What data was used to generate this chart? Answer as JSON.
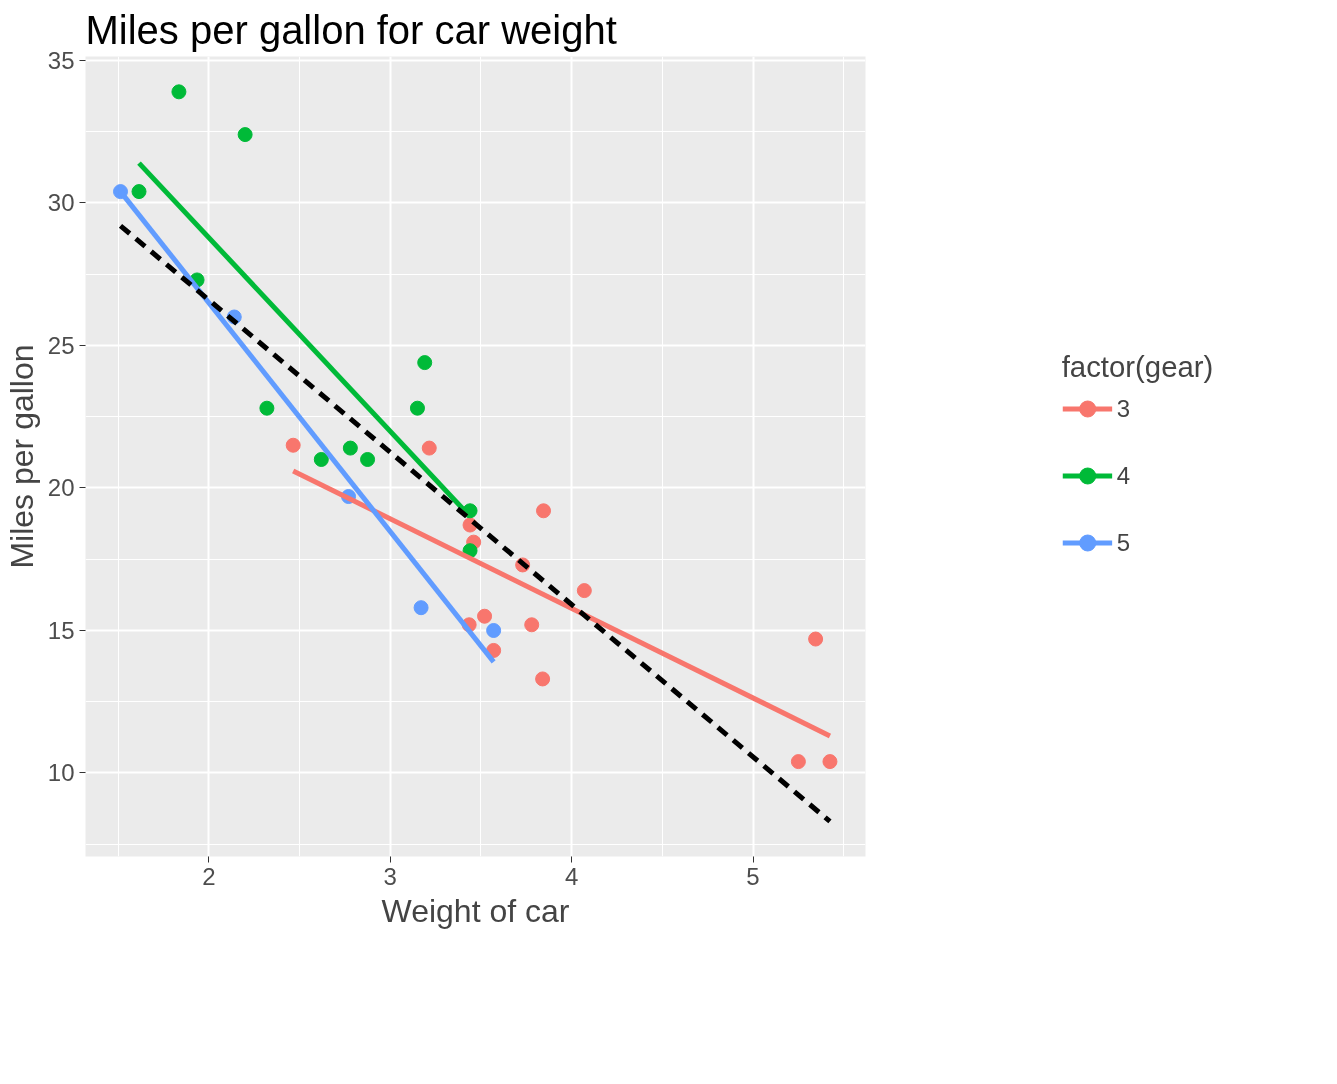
{
  "chart_data": {
    "type": "scatter",
    "title": "Miles per gallon for car weight",
    "xlabel": "Weight of car",
    "ylabel": "Miles per gallon",
    "legend_title": "factor(gear)",
    "legend": "right",
    "grid": true,
    "marker": "circle",
    "xlim": [
      1.32,
      5.62
    ],
    "ylim": [
      7.07,
      35.14
    ],
    "xticks": [
      2,
      3,
      4,
      5
    ],
    "yticks": [
      10,
      15,
      20,
      25,
      30,
      35
    ],
    "series": [
      {
        "name": "3",
        "color": "#f8766d",
        "x": [
          3.215,
          3.44,
          3.46,
          3.57,
          4.07,
          3.73,
          3.78,
          5.25,
          5.424,
          5.345,
          2.465,
          3.52,
          3.435,
          3.84,
          3.845
        ],
        "values": [
          21.4,
          18.7,
          18.1,
          14.3,
          16.4,
          17.3,
          15.2,
          10.4,
          10.4,
          14.7,
          21.5,
          15.5,
          15.2,
          13.3,
          19.2
        ]
      },
      {
        "name": "4",
        "color": "#00ba38",
        "x": [
          2.62,
          2.875,
          2.32,
          3.19,
          3.15,
          3.44,
          3.44,
          2.2,
          1.615,
          1.835,
          1.935,
          2.78
        ],
        "values": [
          21.0,
          21.0,
          22.8,
          24.4,
          22.8,
          19.2,
          17.8,
          32.4,
          30.4,
          33.9,
          27.3,
          21.4
        ]
      },
      {
        "name": "5",
        "color": "#619cff",
        "x": [
          2.14,
          1.513,
          3.17,
          2.77,
          3.57
        ],
        "values": [
          26.0,
          30.4,
          15.8,
          19.7,
          15.0
        ]
      },
      {
        "type": "line",
        "marker": "none",
        "color": "#f8766d",
        "x": [
          2.465,
          5.424
        ],
        "values": [
          20.6,
          11.3
        ]
      },
      {
        "type": "line",
        "marker": "none",
        "color": "#00ba38",
        "x": [
          1.615,
          3.44
        ],
        "values": [
          31.4,
          19.0
        ]
      },
      {
        "type": "line",
        "marker": "none",
        "color": "#619cff",
        "x": [
          1.513,
          3.57
        ],
        "values": [
          30.4,
          13.9
        ]
      },
      {
        "type": "line",
        "marker": "none",
        "color": "#000000",
        "line_style": "dashed",
        "x": [
          1.513,
          5.424
        ],
        "values": [
          29.2,
          8.3
        ]
      }
    ]
  }
}
